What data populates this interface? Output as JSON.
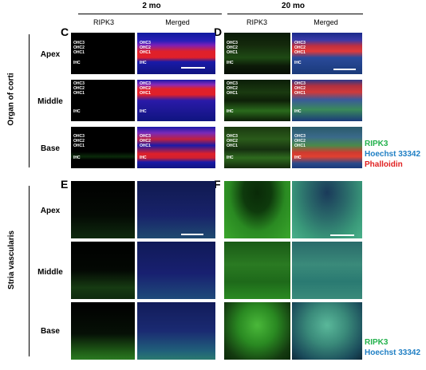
{
  "ages": {
    "two": "2 mo",
    "twenty": "20 mo"
  },
  "columns": {
    "ripk3": "RIPK3",
    "merged": "Merged"
  },
  "panels": {
    "c": "C",
    "d": "D",
    "e": "E",
    "f": "F"
  },
  "regions": {
    "organ": "Organ of corti",
    "stria": "Stria vascularis"
  },
  "rows": {
    "apex": "Apex",
    "middle": "Middle",
    "base": "Base"
  },
  "cells": {
    "ohc3": "OHC3",
    "ohc2": "OHC2",
    "ohc1": "OHC1",
    "ihc": "IHC"
  },
  "legend_organ": {
    "ripk3": "RIPK3",
    "hoechst": "Hoechst 33342",
    "phalloidin": "Phalloidin"
  },
  "legend_stria": {
    "ripk3": "RIPK3",
    "hoechst": "Hoechst 33342"
  },
  "colors": {
    "ripk3": "#22b14c",
    "hoechst": "#1f7fc4",
    "phalloidin": "#e02020"
  }
}
